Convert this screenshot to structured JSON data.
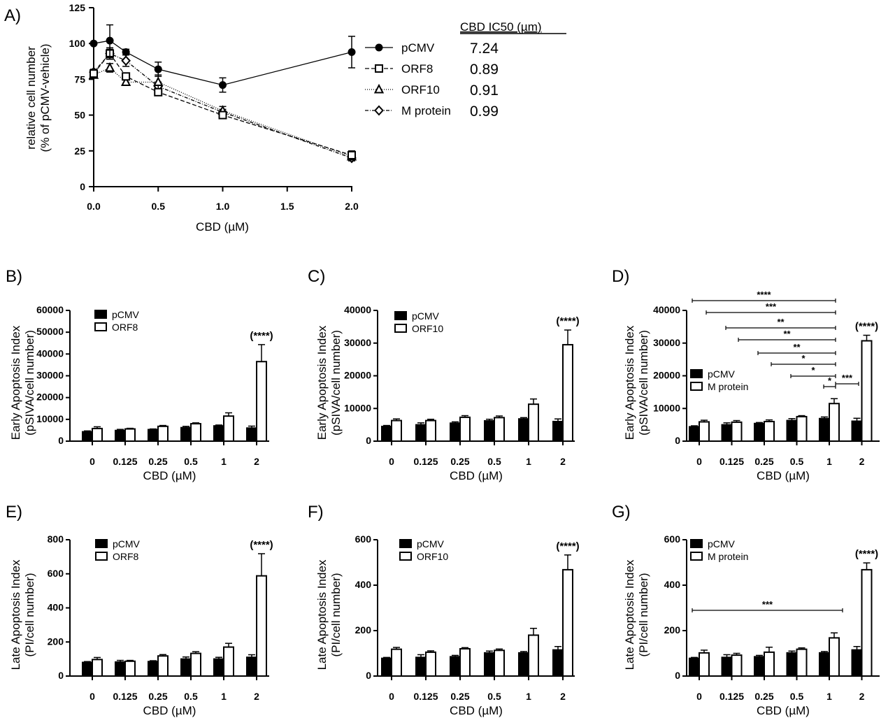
{
  "chart_data": [
    {
      "panel": "A)",
      "type": "line",
      "xlabel": "CBD (µM)",
      "ylabel": [
        "relative cell number",
        "(% of pCMV-vehicle)"
      ],
      "x": [
        0,
        0.125,
        0.25,
        0.5,
        1,
        2
      ],
      "xlim": [
        0,
        2
      ],
      "ylim": [
        0,
        125
      ],
      "xticks": [
        "0.0",
        "0.5",
        "1.0",
        "1.5",
        "2.0"
      ],
      "yticks": [
        "0",
        "25",
        "50",
        "75",
        "100",
        "125"
      ],
      "legend_header": "CBD IC50 (µm)",
      "series": [
        {
          "name": "pCMV",
          "ic50": "7.24",
          "marker": "circle",
          "dash": "",
          "values": [
            100,
            102,
            94,
            82,
            71,
            94
          ],
          "errors": [
            0,
            11,
            2,
            5,
            5,
            11
          ]
        },
        {
          "name": "ORF8",
          "ic50": "0.89",
          "marker": "square",
          "dash": "6,3",
          "values": [
            79,
            93,
            77,
            66,
            50,
            22
          ],
          "errors": [
            2,
            4,
            2,
            2,
            2,
            3
          ]
        },
        {
          "name": "ORF10",
          "ic50": "0.91",
          "marker": "triangle",
          "dash": "1,2",
          "values": [
            78,
            83,
            73,
            73,
            53,
            21
          ],
          "errors": [
            2,
            3,
            2,
            5,
            3,
            2
          ]
        },
        {
          "name": "M protein",
          "ic50": "0.99",
          "marker": "diamond",
          "dash": "5,2,1,2",
          "values": [
            80,
            93,
            88,
            70,
            52,
            20
          ],
          "errors": [
            2,
            3,
            4,
            3,
            2,
            2
          ]
        }
      ]
    },
    {
      "panel": "B)",
      "type": "bar",
      "xlabel": "CBD (µM)",
      "ylabel": [
        "Early Apoptosis Index",
        "(pSIVA/cell number)"
      ],
      "categories": [
        "0",
        "0.125",
        "0.25",
        "0.5",
        "1",
        "2"
      ],
      "ylim": [
        0,
        60000
      ],
      "yticks": [
        "0",
        "10000",
        "20000",
        "30000",
        "40000",
        "50000",
        "60000"
      ],
      "series": [
        {
          "name": "pCMV",
          "values": [
            4300,
            4900,
            5300,
            6200,
            7000,
            6000
          ],
          "errors": [
            400,
            500,
            300,
            600,
            400,
            900
          ]
        },
        {
          "name": "ORF8",
          "values": [
            5800,
            5600,
            6800,
            8000,
            11500,
            36500
          ],
          "errors": [
            800,
            300,
            400,
            400,
            1500,
            7800
          ]
        }
      ],
      "annotation": "(****)"
    },
    {
      "panel": "C)",
      "type": "bar",
      "xlabel": "CBD (µM)",
      "ylabel": [
        "Early Apoptosis Index",
        "(pSIVA/cell number)"
      ],
      "categories": [
        "0",
        "0.125",
        "0.25",
        "0.5",
        "1",
        "2"
      ],
      "ylim": [
        0,
        40000
      ],
      "yticks": [
        "0",
        "10000",
        "20000",
        "30000",
        "40000"
      ],
      "series": [
        {
          "name": "pCMV",
          "values": [
            4500,
            5000,
            5500,
            6200,
            6800,
            6000
          ],
          "errors": [
            300,
            600,
            400,
            500,
            400,
            800
          ]
        },
        {
          "name": "ORF10",
          "values": [
            6300,
            6300,
            7300,
            7200,
            11300,
            29500
          ],
          "errors": [
            500,
            400,
            500,
            500,
            1600,
            4500
          ]
        }
      ],
      "annotation": "(****)"
    },
    {
      "panel": "D)",
      "type": "bar",
      "xlabel": "CBD (µM)",
      "ylabel": [
        "Early Apoptosis Index",
        "(pSIVA/cell number)"
      ],
      "categories": [
        "0",
        "0.125",
        "0.25",
        "0.5",
        "1",
        "2"
      ],
      "ylim": [
        0,
        40000
      ],
      "yticks": [
        "0",
        "10000",
        "20000",
        "30000",
        "40000"
      ],
      "series": [
        {
          "name": "pCMV",
          "values": [
            4400,
            5000,
            5400,
            6300,
            6900,
            6100
          ],
          "errors": [
            300,
            600,
            300,
            600,
            500,
            900
          ]
        },
        {
          "name": "M protein",
          "values": [
            5900,
            5800,
            6000,
            7500,
            11500,
            30700
          ],
          "errors": [
            500,
            500,
            500,
            300,
            1500,
            1700
          ]
        }
      ],
      "annotation": "(****)",
      "significance": [
        "****",
        "***",
        "**",
        "**",
        "**",
        "*",
        "*",
        "*",
        "***"
      ]
    },
    {
      "panel": "E)",
      "type": "bar",
      "xlabel": "CBD (µM)",
      "ylabel": [
        "Late Apoptosis Index",
        "(PI/cell number)"
      ],
      "categories": [
        "0",
        "0.125",
        "0.25",
        "0.5",
        "1",
        "2"
      ],
      "ylim": [
        0,
        800
      ],
      "yticks": [
        "0",
        "200",
        "400",
        "600",
        "800"
      ],
      "series": [
        {
          "name": "pCMV",
          "values": [
            80,
            82,
            85,
            100,
            100,
            110
          ],
          "errors": [
            5,
            10,
            5,
            12,
            10,
            15
          ]
        },
        {
          "name": "ORF8",
          "values": [
            97,
            87,
            118,
            133,
            170,
            588
          ],
          "errors": [
            12,
            5,
            8,
            10,
            22,
            130
          ]
        }
      ],
      "annotation": "(****)"
    },
    {
      "panel": "F)",
      "type": "bar",
      "xlabel": "CBD (µM)",
      "ylabel": [
        "Late Apoptosis Index",
        "(PI/cell number)"
      ],
      "categories": [
        "0",
        "0.125",
        "0.25",
        "0.5",
        "1",
        "2"
      ],
      "ylim": [
        0,
        600
      ],
      "yticks": [
        "0",
        "200",
        "400",
        "600"
      ],
      "series": [
        {
          "name": "pCMV",
          "values": [
            78,
            82,
            85,
            102,
            102,
            115
          ],
          "errors": [
            4,
            12,
            6,
            8,
            6,
            15
          ]
        },
        {
          "name": "ORF10",
          "values": [
            118,
            105,
            120,
            113,
            180,
            468
          ],
          "errors": [
            8,
            6,
            5,
            6,
            30,
            65
          ]
        }
      ],
      "annotation": "(****)"
    },
    {
      "panel": "G)",
      "type": "bar",
      "xlabel": "CBD (µM)",
      "ylabel": [
        "Late Apoptosis Index",
        "(PI/cell number)"
      ],
      "categories": [
        "0",
        "0.125",
        "0.25",
        "0.5",
        "1",
        "2"
      ],
      "ylim": [
        0,
        600
      ],
      "yticks": [
        "0",
        "200",
        "400",
        "600"
      ],
      "series": [
        {
          "name": "pCMV",
          "values": [
            78,
            82,
            85,
            102,
            102,
            115
          ],
          "errors": [
            4,
            12,
            6,
            8,
            6,
            15
          ]
        },
        {
          "name": "M protein",
          "values": [
            102,
            92,
            105,
            118,
            168,
            468
          ],
          "errors": [
            12,
            8,
            22,
            6,
            22,
            30
          ]
        }
      ],
      "annotation": "(****)",
      "significance": [
        "***"
      ]
    }
  ]
}
